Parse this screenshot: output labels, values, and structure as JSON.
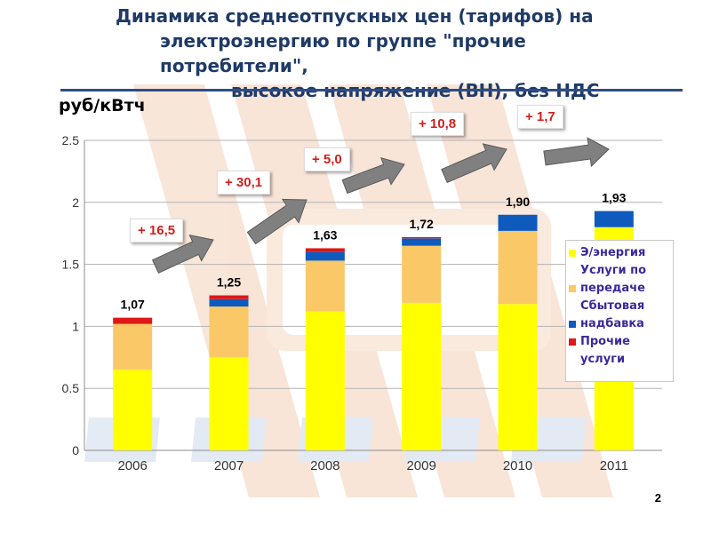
{
  "title": {
    "line1": "Динамика среднеотпускных цен (тарифов) на",
    "line2": "электроэнергию по группе \"прочие потребители\",",
    "line3": "высокое напряжение (ВН), без НДС"
  },
  "unit_label": "руб/кВтч",
  "page_number": "2",
  "legend": [
    {
      "label": "Э/энергия",
      "color": "#ffff00"
    },
    {
      "label": "Услуги по передаче",
      "color": "#fbc867"
    },
    {
      "label": "Сбытовая надбавка",
      "color": "#0e5bbd"
    },
    {
      "label": "Прочие услуги",
      "color": "#e01717"
    }
  ],
  "growth_badges": [
    "+ 16,5",
    "+ 30,1",
    "+ 5,0",
    "+ 10,8",
    "+ 1,7"
  ],
  "colors": {
    "accent": "#1f3a66",
    "badge_text": "#d0201e",
    "arrow": "#808080"
  },
  "chart_data": {
    "type": "bar",
    "stacked": true,
    "categories": [
      "2006",
      "2007",
      "2008",
      "2009",
      "2010",
      "2011"
    ],
    "series": [
      {
        "name": "Э/энергия",
        "color": "#ffff00",
        "values": [
          0.65,
          0.75,
          1.12,
          1.19,
          1.18,
          1.8
        ]
      },
      {
        "name": "Услуги по передаче",
        "color": "#fbc867",
        "values": [
          0.37,
          0.41,
          0.41,
          0.46,
          0.59,
          0.0
        ]
      },
      {
        "name": "Сбытовая надбавка",
        "color": "#0e5bbd",
        "values": [
          0.0,
          0.06,
          0.07,
          0.06,
          0.13,
          0.13
        ]
      },
      {
        "name": "Прочие услуги",
        "color": "#e01717",
        "values": [
          0.05,
          0.03,
          0.03,
          0.01,
          0.0,
          0.0
        ]
      }
    ],
    "totals_labels": [
      "1,07",
      "1,25",
      "1,63",
      "1,72",
      "1,90",
      "1,93"
    ],
    "yticks": [
      "0",
      "0.5",
      "1",
      "1.5",
      "2",
      "2.5"
    ],
    "ylim": [
      0,
      2.5
    ],
    "ylabel": "руб/кВтч",
    "grid": true,
    "legend_position": "right"
  }
}
